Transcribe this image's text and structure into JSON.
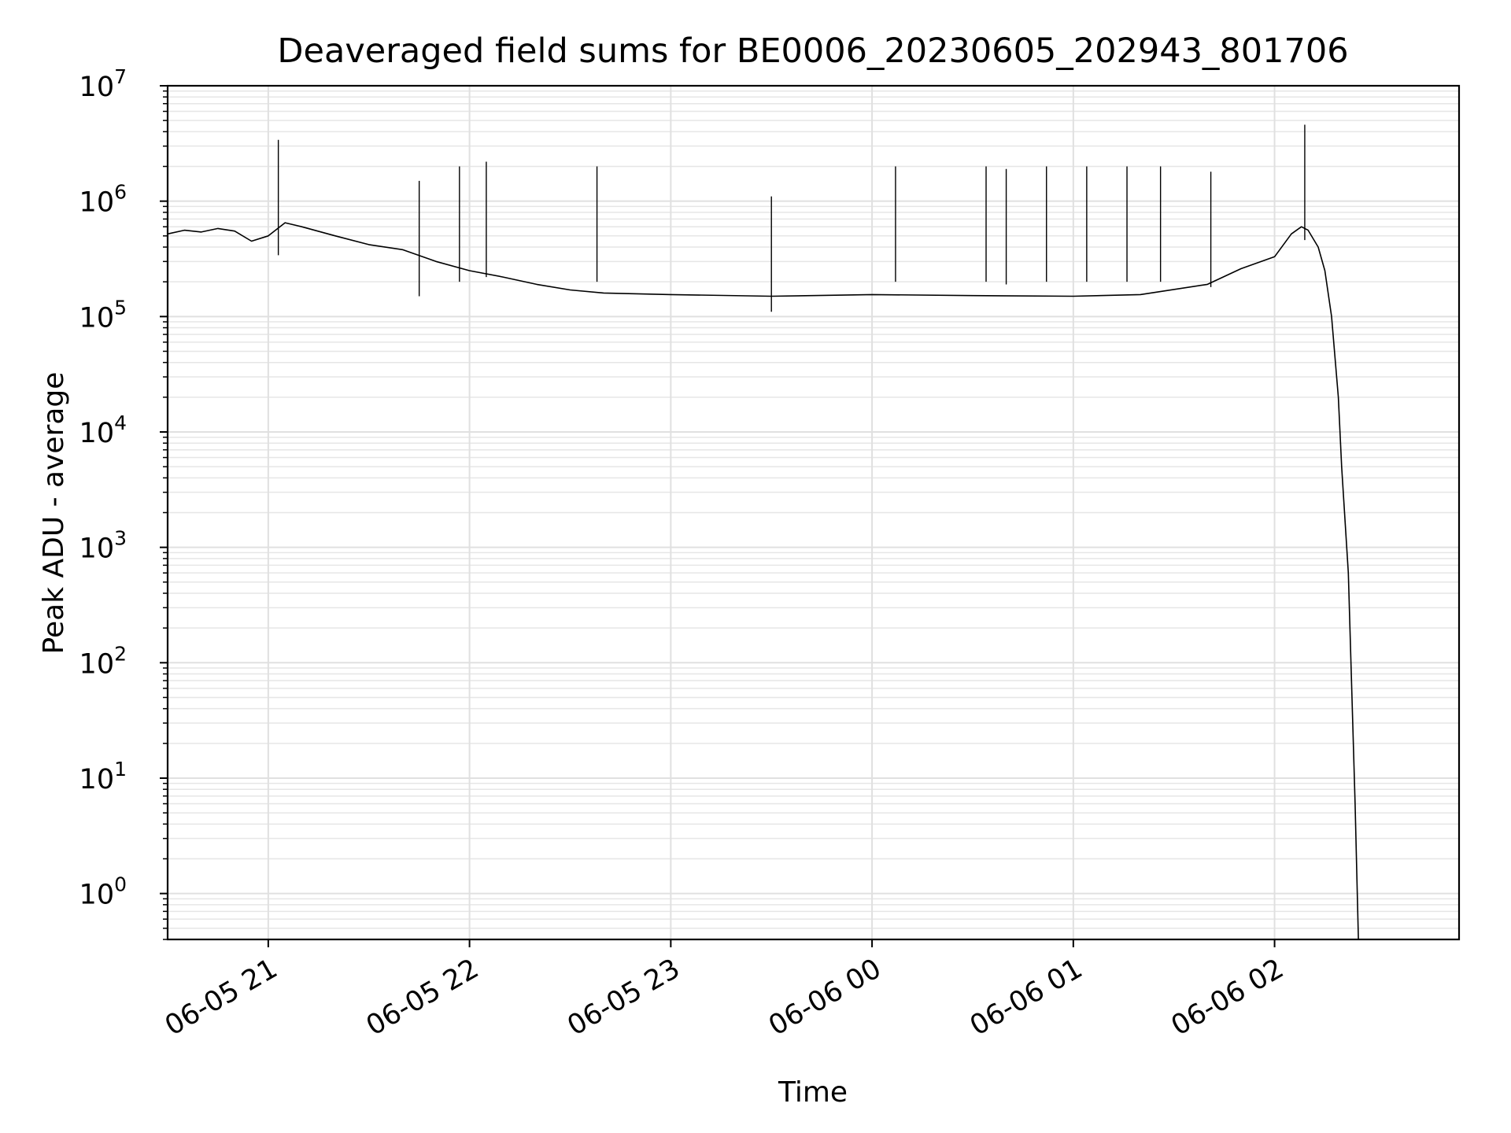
{
  "chart_data": {
    "type": "line",
    "title": "Deaveraged field sums for BE0006_20230605_202943_801706",
    "xlabel": "Time",
    "ylabel": "Peak ADU - average",
    "yscale": "log",
    "ylim": [
      0.4,
      10000000
    ],
    "xlim": [
      "2023-06-05 20:30",
      "2023-06-06 02:55"
    ],
    "grid": true,
    "grid_color": "#e0e0e0",
    "line_color": "#000000",
    "x_ticks": [
      {
        "x": "2023-06-05 21:00",
        "label": "06-05 21"
      },
      {
        "x": "2023-06-05 22:00",
        "label": "06-05 22"
      },
      {
        "x": "2023-06-05 23:00",
        "label": "06-05 23"
      },
      {
        "x": "2023-06-06 00:00",
        "label": "06-06 00"
      },
      {
        "x": "2023-06-06 01:00",
        "label": "06-06 01"
      },
      {
        "x": "2023-06-06 02:00",
        "label": "06-06 02"
      }
    ],
    "y_ticks": [
      {
        "y": 1,
        "base": "10",
        "exp": "0"
      },
      {
        "y": 10,
        "base": "10",
        "exp": "1"
      },
      {
        "y": 100,
        "base": "10",
        "exp": "2"
      },
      {
        "y": 1000,
        "base": "10",
        "exp": "3"
      },
      {
        "y": 10000,
        "base": "10",
        "exp": "4"
      },
      {
        "y": 100000,
        "base": "10",
        "exp": "5"
      },
      {
        "y": 1000000,
        "base": "10",
        "exp": "6"
      },
      {
        "y": 10000000,
        "base": "10",
        "exp": "7"
      }
    ],
    "series": [
      {
        "points": [
          [
            "2023-06-05 20:30",
            520000
          ],
          [
            "2023-06-05 20:35",
            560000
          ],
          [
            "2023-06-05 20:40",
            540000
          ],
          [
            "2023-06-05 20:45",
            580000
          ],
          [
            "2023-06-05 20:50",
            550000
          ],
          [
            "2023-06-05 20:55",
            450000
          ],
          [
            "2023-06-05 21:00",
            500000
          ],
          [
            "2023-06-05 21:05",
            650000
          ],
          [
            "2023-06-05 21:10",
            600000
          ],
          [
            "2023-06-05 21:20",
            500000
          ],
          [
            "2023-06-05 21:30",
            420000
          ],
          [
            "2023-06-05 21:40",
            380000
          ],
          [
            "2023-06-05 21:50",
            300000
          ],
          [
            "2023-06-05 22:00",
            250000
          ],
          [
            "2023-06-05 22:10",
            220000
          ],
          [
            "2023-06-05 22:20",
            190000
          ],
          [
            "2023-06-05 22:30",
            170000
          ],
          [
            "2023-06-05 22:40",
            160000
          ],
          [
            "2023-06-05 23:00",
            155000
          ],
          [
            "2023-06-05 23:30",
            150000
          ],
          [
            "2023-06-06 00:00",
            155000
          ],
          [
            "2023-06-06 00:30",
            152000
          ],
          [
            "2023-06-06 01:00",
            150000
          ],
          [
            "2023-06-06 01:20",
            155000
          ],
          [
            "2023-06-06 01:40",
            190000
          ],
          [
            "2023-06-06 01:50",
            260000
          ],
          [
            "2023-06-06 02:00",
            330000
          ],
          [
            "2023-06-06 02:05",
            520000
          ],
          [
            "2023-06-06 02:08",
            600000
          ],
          [
            "2023-06-06 02:10",
            560000
          ],
          [
            "2023-06-06 02:13",
            400000
          ],
          [
            "2023-06-06 02:15",
            250000
          ],
          [
            "2023-06-06 02:17",
            100000
          ],
          [
            "2023-06-06 02:19",
            20000
          ],
          [
            "2023-06-06 02:20",
            5000
          ],
          [
            "2023-06-06 02:22",
            600
          ],
          [
            "2023-06-06 02:23",
            60
          ],
          [
            "2023-06-06 02:24",
            6
          ],
          [
            "2023-06-06 02:25",
            0.4
          ]
        ],
        "spikes": [
          [
            "2023-06-05 21:03",
            3400000
          ],
          [
            "2023-06-05 21:45",
            1500000
          ],
          [
            "2023-06-05 21:57",
            2000000
          ],
          [
            "2023-06-05 22:05",
            2200000
          ],
          [
            "2023-06-05 22:38",
            2000000
          ],
          [
            "2023-06-05 23:30",
            1100000
          ],
          [
            "2023-06-06 00:07",
            2000000
          ],
          [
            "2023-06-06 00:40",
            1900000
          ],
          [
            "2023-06-06 00:34",
            2000000
          ],
          [
            "2023-06-06 00:52",
            2000000
          ],
          [
            "2023-06-06 01:04",
            2000000
          ],
          [
            "2023-06-06 01:16",
            2000000
          ],
          [
            "2023-06-06 01:26",
            2000000
          ],
          [
            "2023-06-06 01:41",
            1800000
          ],
          [
            "2023-06-06 02:09",
            4600000
          ]
        ]
      }
    ]
  }
}
